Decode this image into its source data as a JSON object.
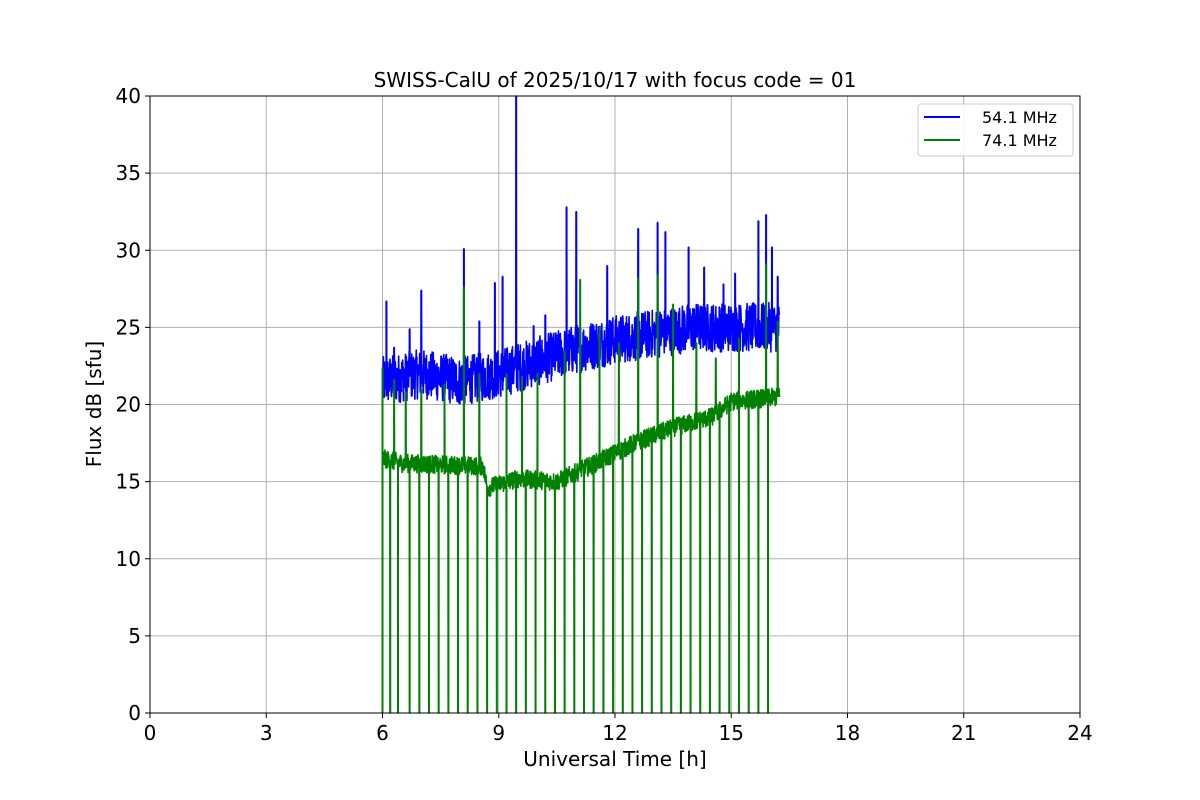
{
  "chart_data": {
    "type": "line",
    "title": "SWISS-CalU of 2025/10/17 with focus code = 01",
    "xlabel": "Universal Time [h]",
    "ylabel": "Flux dB [sfu]",
    "xlim": [
      0,
      24
    ],
    "ylim": [
      0,
      40
    ],
    "xticks": [
      0,
      3,
      6,
      9,
      12,
      15,
      18,
      21,
      24
    ],
    "yticks": [
      0,
      5,
      10,
      15,
      20,
      25,
      30,
      35,
      40
    ],
    "grid": true,
    "legend_position": "top-right",
    "data_range_hours": [
      6.0,
      16.25
    ],
    "series": [
      {
        "name": "54.1 MHz",
        "color": "#0000ff",
        "baseline": [
          [
            6.0,
            21.5
          ],
          [
            7.0,
            22.0
          ],
          [
            8.0,
            21.5
          ],
          [
            9.0,
            22.0
          ],
          [
            10.0,
            22.8
          ],
          [
            11.0,
            23.6
          ],
          [
            12.0,
            24.2
          ],
          [
            13.0,
            24.6
          ],
          [
            14.0,
            25.0
          ],
          [
            15.0,
            25.0
          ],
          [
            16.25,
            25.0
          ]
        ],
        "band_halfwidth": 1.6,
        "spikes": [
          [
            6.1,
            26.7
          ],
          [
            6.3,
            23.7
          ],
          [
            6.7,
            24.9
          ],
          [
            7.0,
            27.4
          ],
          [
            8.1,
            30.1
          ],
          [
            8.5,
            25.4
          ],
          [
            8.9,
            27.9
          ],
          [
            9.1,
            28.3
          ],
          [
            9.45,
            40.0
          ],
          [
            9.9,
            25.1
          ],
          [
            10.2,
            25.8
          ],
          [
            10.75,
            32.8
          ],
          [
            11.0,
            32.5
          ],
          [
            11.8,
            29.0
          ],
          [
            12.6,
            31.4
          ],
          [
            13.1,
            31.8
          ],
          [
            13.3,
            31.2
          ],
          [
            13.9,
            30.2
          ],
          [
            14.3,
            28.9
          ],
          [
            14.8,
            27.8
          ],
          [
            15.1,
            28.5
          ],
          [
            15.7,
            31.9
          ],
          [
            15.9,
            32.3
          ],
          [
            16.05,
            30.2
          ],
          [
            16.2,
            28.3
          ]
        ]
      },
      {
        "name": "74.1 MHz",
        "color": "#008000",
        "baseline": [
          [
            6.0,
            16.5
          ],
          [
            6.5,
            16.2
          ],
          [
            7.5,
            16.1
          ],
          [
            8.6,
            16.0
          ],
          [
            8.7,
            14.6
          ],
          [
            9.5,
            15.2
          ],
          [
            10.5,
            15.0
          ],
          [
            11.5,
            16.2
          ],
          [
            12.5,
            17.5
          ],
          [
            13.5,
            18.5
          ],
          [
            14.5,
            19.2
          ],
          [
            15.0,
            20.2
          ],
          [
            16.25,
            20.5
          ]
        ],
        "band_halfwidth": 0.6,
        "dropouts_to_zero": [
          6.0,
          6.2,
          6.4,
          6.7,
          6.95,
          7.2,
          7.45,
          7.7,
          7.95,
          8.2,
          8.45,
          8.7,
          8.95,
          9.2,
          9.45,
          9.7,
          9.95,
          10.2,
          10.45,
          10.7,
          10.95,
          11.2,
          11.45,
          11.7,
          11.95,
          12.2,
          12.45,
          12.7,
          12.95,
          13.2,
          13.45,
          13.7,
          13.95,
          14.2,
          14.45,
          14.7,
          14.95,
          15.2,
          15.45,
          15.7,
          15.95
        ],
        "spike_peaks": [
          [
            6.0,
            22.4
          ],
          [
            6.3,
            21.6
          ],
          [
            6.6,
            20.8
          ],
          [
            7.0,
            21.0
          ],
          [
            7.6,
            21.3
          ],
          [
            8.1,
            27.6
          ],
          [
            8.5,
            22.0
          ],
          [
            9.2,
            22.0
          ],
          [
            9.6,
            21.8
          ],
          [
            10.0,
            22.0
          ],
          [
            10.7,
            23.5
          ],
          [
            11.1,
            28.1
          ],
          [
            11.6,
            25.0
          ],
          [
            12.1,
            24.0
          ],
          [
            12.6,
            28.2
          ],
          [
            13.1,
            28.4
          ],
          [
            13.5,
            26.5
          ],
          [
            14.1,
            24.0
          ],
          [
            14.6,
            23.0
          ],
          [
            15.2,
            24.3
          ],
          [
            15.9,
            29.1
          ],
          [
            16.2,
            25.4
          ]
        ]
      }
    ]
  }
}
